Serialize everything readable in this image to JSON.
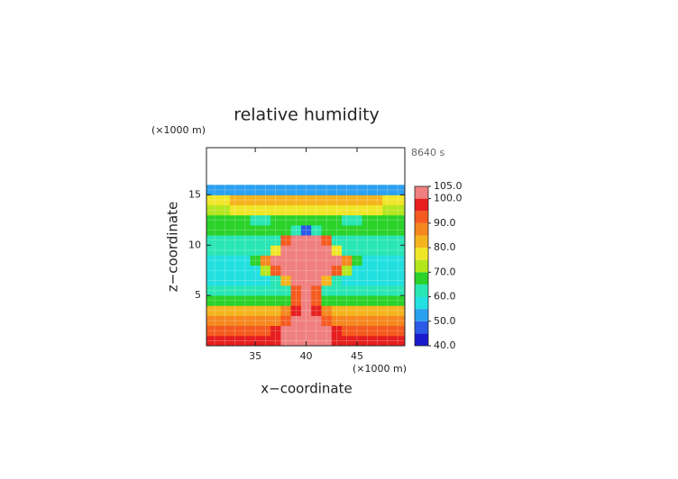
{
  "chart_data": {
    "type": "contour",
    "title": "relative humidity",
    "y_unit": "(×1000 m)",
    "x_unit": "(×1000 m)",
    "time_label": "8640 s",
    "xlabel": "x−coordinate",
    "ylabel": "z−coordinate",
    "xlim": [
      30.2,
      49.7
    ],
    "xticks": [
      35,
      40,
      45
    ],
    "ylim": [
      0,
      19.7
    ],
    "yticks": [
      5,
      10,
      15
    ],
    "x": [
      31,
      32,
      33,
      34,
      35,
      36,
      37,
      38,
      39,
      40,
      41,
      42,
      43,
      44,
      45,
      46,
      47,
      48,
      49
    ],
    "z": [
      0.5,
      1.5,
      2.5,
      3.5,
      4.5,
      5.5,
      6.5,
      7.5,
      8.5,
      9.5,
      10.5,
      11.5,
      12.5,
      13.5,
      14.5,
      15.5
    ],
    "values": [
      [
        97,
        97,
        97,
        97,
        97,
        97,
        98,
        100,
        101,
        101,
        101,
        100,
        98,
        97,
        97,
        97,
        97,
        97,
        97
      ],
      [
        93,
        93,
        93,
        93,
        93,
        93,
        95,
        101,
        101,
        101,
        101,
        101,
        95,
        93,
        93,
        93,
        93,
        93,
        93
      ],
      [
        87,
        87,
        87,
        87,
        87,
        87,
        88,
        92,
        101,
        101,
        101,
        92,
        88,
        87,
        87,
        87,
        87,
        87,
        87
      ],
      [
        82,
        82,
        82,
        82,
        82,
        82,
        83,
        86,
        95,
        101,
        95,
        86,
        83,
        82,
        82,
        82,
        82,
        82,
        82
      ],
      [
        66,
        66,
        66,
        66,
        66,
        66,
        66,
        68,
        90,
        101,
        90,
        68,
        66,
        66,
        66,
        66,
        66,
        66,
        66
      ],
      [
        60,
        60,
        60,
        60,
        60,
        60,
        60,
        62,
        90,
        101,
        90,
        62,
        60,
        60,
        60,
        60,
        60,
        60,
        60
      ],
      [
        58,
        58,
        58,
        58,
        58,
        58,
        60,
        80,
        101,
        101,
        101,
        80,
        60,
        58,
        58,
        58,
        58,
        58,
        58
      ],
      [
        58,
        58,
        58,
        58,
        58,
        70,
        90,
        101,
        101,
        101,
        101,
        101,
        90,
        70,
        58,
        58,
        58,
        58,
        58
      ],
      [
        59,
        59,
        59,
        59,
        66,
        85,
        101,
        101,
        101,
        101,
        101,
        101,
        101,
        85,
        66,
        59,
        59,
        59,
        59
      ],
      [
        60,
        60,
        60,
        60,
        60,
        62,
        75,
        101,
        101,
        101,
        101,
        101,
        75,
        62,
        60,
        60,
        60,
        60,
        60
      ],
      [
        62,
        62,
        62,
        62,
        62,
        62,
        64,
        90,
        101,
        101,
        101,
        90,
        64,
        62,
        62,
        62,
        62,
        62,
        62
      ],
      [
        66,
        66,
        66,
        66,
        66,
        66,
        66,
        66,
        62,
        48,
        62,
        66,
        66,
        66,
        66,
        66,
        66,
        66,
        66
      ],
      [
        67,
        67,
        67,
        67,
        64,
        64,
        67,
        68,
        66,
        66,
        66,
        68,
        67,
        64,
        64,
        67,
        67,
        67,
        67
      ],
      [
        74,
        74,
        76,
        76,
        76,
        76,
        76,
        76,
        76,
        76,
        76,
        76,
        76,
        76,
        76,
        76,
        76,
        74,
        74
      ],
      [
        76,
        76,
        83,
        83,
        83,
        83,
        83,
        83,
        83,
        83,
        83,
        83,
        83,
        83,
        83,
        83,
        83,
        76,
        76
      ],
      [
        52,
        52,
        52,
        53,
        53,
        53,
        53,
        53,
        53,
        53,
        53,
        53,
        53,
        53,
        53,
        53,
        53,
        52,
        52
      ]
    ],
    "colorbar": {
      "levels": [
        40,
        45,
        50,
        55,
        60,
        65,
        70,
        75,
        80,
        85,
        90,
        95,
        100,
        105
      ],
      "colors": [
        "#1a1acc",
        "#2a5ae6",
        "#2aa0f0",
        "#22e0e0",
        "#2ae6b4",
        "#2ad22a",
        "#b4e61e",
        "#f0e628",
        "#f5b41e",
        "#f5871e",
        "#f55a1e",
        "#e61e1e",
        "#f08080"
      ],
      "ticks": [
        {
          "value": 40,
          "label": "40.0"
        },
        {
          "value": 50,
          "label": "50.0"
        },
        {
          "value": 60,
          "label": "60.0"
        },
        {
          "value": 70,
          "label": "70.0"
        },
        {
          "value": 80,
          "label": "80.0"
        },
        {
          "value": 90,
          "label": "90.0"
        },
        {
          "value": 100,
          "label": "100.0"
        },
        {
          "value": 105,
          "label": "105.0"
        }
      ]
    },
    "grid": true
  }
}
